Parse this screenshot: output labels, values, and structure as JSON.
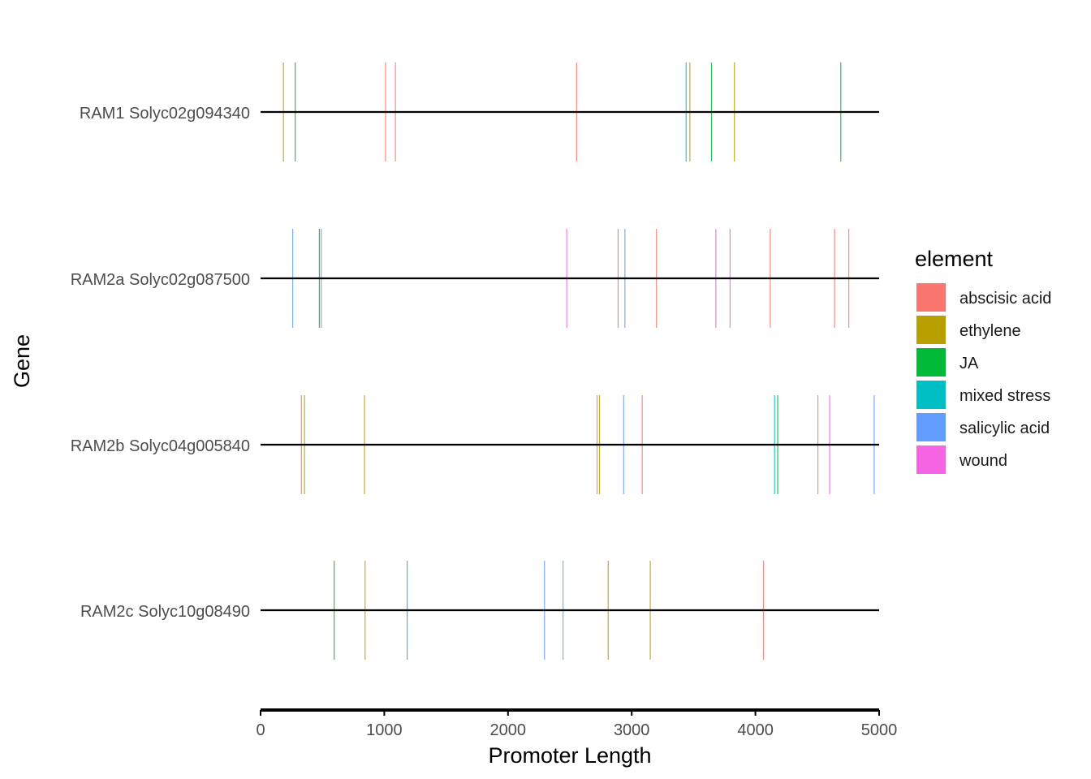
{
  "chart_data": {
    "type": "promoter_map",
    "xlabel": "Promoter Length",
    "ylabel": "Gene",
    "xlim": [
      0,
      5000
    ],
    "x_ticks": [
      0,
      1000,
      2000,
      3000,
      4000,
      5000
    ],
    "x_tick_labels": [
      "0",
      "1000",
      "2000",
      "3000",
      "4000",
      "5000"
    ],
    "grid": false,
    "legend_position": "right",
    "legend": {
      "title": "element",
      "entries": [
        {
          "name": "abscisic acid",
          "color": "#F8766D"
        },
        {
          "name": "ethylene",
          "color": "#B79F00"
        },
        {
          "name": "JA",
          "color": "#00BA38"
        },
        {
          "name": "mixed stress",
          "color": "#00BFC4"
        },
        {
          "name": "salicylic acid",
          "color": "#619CFF"
        },
        {
          "name": "wound",
          "color": "#F564E3"
        }
      ]
    },
    "genes": [
      {
        "name": "RAM1 Solyc02g094340",
        "length": 5000,
        "elements": [
          {
            "x": 185,
            "element": "ethylene"
          },
          {
            "x": 280,
            "element": "JA"
          },
          {
            "x": 1010,
            "element": "abscisic acid"
          },
          {
            "x": 1090,
            "element": "abscisic acid"
          },
          {
            "x": 2555,
            "element": "abscisic acid"
          },
          {
            "x": 3440,
            "element": "mixed stress"
          },
          {
            "x": 3470,
            "element": "ethylene"
          },
          {
            "x": 3645,
            "element": "JA"
          },
          {
            "x": 3830,
            "element": "ethylene"
          },
          {
            "x": 4690,
            "element": "JA"
          }
        ]
      },
      {
        "name": "RAM2a Solyc02g087500",
        "length": 5000,
        "elements": [
          {
            "x": 260,
            "element": "salicylic acid"
          },
          {
            "x": 475,
            "element": "JA"
          },
          {
            "x": 490,
            "element": "salicylic acid"
          },
          {
            "x": 2475,
            "element": "wound"
          },
          {
            "x": 2890,
            "element": "abscisic acid"
          },
          {
            "x": 2945,
            "element": "salicylic acid"
          },
          {
            "x": 3200,
            "element": "abscisic acid"
          },
          {
            "x": 3680,
            "element": "wound"
          },
          {
            "x": 3795,
            "element": "wound"
          },
          {
            "x": 4120,
            "element": "abscisic acid"
          },
          {
            "x": 4640,
            "element": "abscisic acid"
          },
          {
            "x": 4755,
            "element": "abscisic acid"
          }
        ]
      },
      {
        "name": "RAM2b Solyc04g005840",
        "length": 5000,
        "elements": [
          {
            "x": 330,
            "element": "abscisic acid"
          },
          {
            "x": 355,
            "element": "ethylene"
          },
          {
            "x": 840,
            "element": "ethylene"
          },
          {
            "x": 2720,
            "element": "abscisic acid"
          },
          {
            "x": 2740,
            "element": "ethylene"
          },
          {
            "x": 2935,
            "element": "salicylic acid"
          },
          {
            "x": 3085,
            "element": "abscisic acid"
          },
          {
            "x": 4155,
            "element": "mixed stress"
          },
          {
            "x": 4180,
            "element": "JA"
          },
          {
            "x": 4505,
            "element": "abscisic acid"
          },
          {
            "x": 4600,
            "element": "wound"
          },
          {
            "x": 4960,
            "element": "salicylic acid"
          }
        ]
      },
      {
        "name": "RAM2c Solyc10g08490",
        "length": 5000,
        "elements": [
          {
            "x": 595,
            "element": "JA"
          },
          {
            "x": 845,
            "element": "ethylene"
          },
          {
            "x": 1185,
            "element": "mixed stress"
          },
          {
            "x": 2295,
            "element": "salicylic acid"
          },
          {
            "x": 2445,
            "element": "salicylic acid"
          },
          {
            "x": 2810,
            "element": "ethylene"
          },
          {
            "x": 3150,
            "element": "ethylene"
          },
          {
            "x": 4065,
            "element": "abscisic acid"
          }
        ]
      }
    ]
  }
}
